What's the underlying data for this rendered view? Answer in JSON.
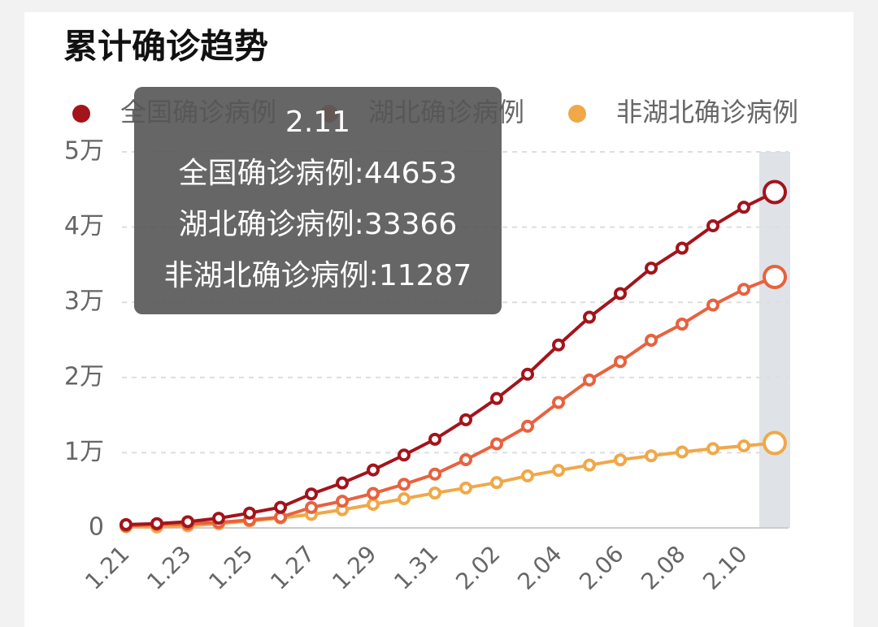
{
  "chart_data": {
    "type": "line",
    "title": "累计确诊趋势",
    "categories": [
      "1.21",
      null,
      "1.23",
      null,
      "1.25",
      null,
      "1.27",
      null,
      "1.29",
      null,
      "1.31",
      null,
      "2.02",
      null,
      "2.04",
      null,
      "2.06",
      null,
      "2.08",
      null,
      "2.10",
      null
    ],
    "series": [
      {
        "name": "全国确诊病例",
        "color": "#a3141b",
        "values": [
          440,
          571,
          830,
          1287,
          1975,
          2744,
          4515,
          5974,
          7711,
          9692,
          11791,
          14380,
          17205,
          20438,
          24324,
          28018,
          31161,
          34546,
          37198,
          40171,
          42638,
          44653
        ]
      },
      {
        "name": "湖北确诊病例",
        "color": "#e8623e",
        "values": [
          270,
          444,
          549,
          729,
          1052,
          1423,
          2714,
          3554,
          4586,
          5806,
          7153,
          9074,
          11177,
          13522,
          16678,
          19665,
          22112,
          24953,
          27100,
          29631,
          31728,
          33366
        ]
      },
      {
        "name": "非湖北确诊病例",
        "color": "#f0a848",
        "values": [
          170,
          130,
          280,
          560,
          920,
          1320,
          1800,
          2420,
          3130,
          3890,
          4640,
          5310,
          6030,
          6920,
          7650,
          8350,
          9050,
          9590,
          10100,
          10540,
          10910,
          11287
        ]
      }
    ],
    "ylim": [
      0,
      50000
    ],
    "yticks": [
      0,
      {
        "value": 10000,
        "label": "1万"
      },
      {
        "value": 20000,
        "label": "2万"
      },
      {
        "value": 30000,
        "label": "3万"
      },
      {
        "value": 40000,
        "label": "4万"
      },
      {
        "value": 50000,
        "label": "5万"
      }
    ],
    "grid": true,
    "highlight_index": 21,
    "tooltip": {
      "title": "2.11",
      "separator": ":"
    }
  }
}
